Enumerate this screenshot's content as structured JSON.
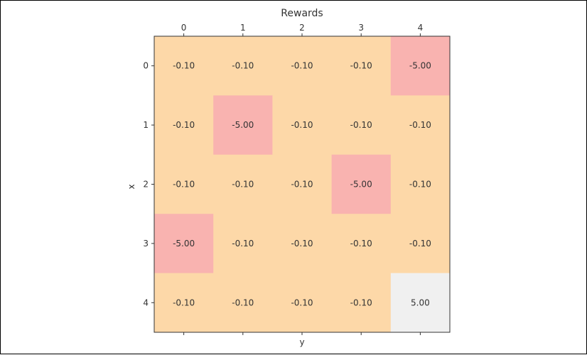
{
  "chart_data": {
    "type": "heatmap",
    "title": "Rewards",
    "xlabel": "y",
    "ylabel": "x",
    "x_tick_position": "top",
    "col_ticks": [
      "0",
      "1",
      "2",
      "3",
      "4"
    ],
    "row_ticks": [
      "0",
      "1",
      "2",
      "3",
      "4"
    ],
    "values": [
      [
        -0.1,
        -0.1,
        -0.1,
        -0.1,
        -5.0
      ],
      [
        -0.1,
        -5.0,
        -0.1,
        -0.1,
        -0.1
      ],
      [
        -0.1,
        -0.1,
        -0.1,
        -5.0,
        -0.1
      ],
      [
        -5.0,
        -0.1,
        -0.1,
        -0.1,
        -0.1
      ],
      [
        -0.1,
        -0.1,
        -0.1,
        -0.1,
        5.0
      ]
    ],
    "value_format": "0.00",
    "colors": {
      "step_penalty": "#fdd8a8",
      "hazard": "#f9b3b0",
      "goal": "#f0f0f0",
      "text": "#333333",
      "axis": "#333333"
    }
  }
}
